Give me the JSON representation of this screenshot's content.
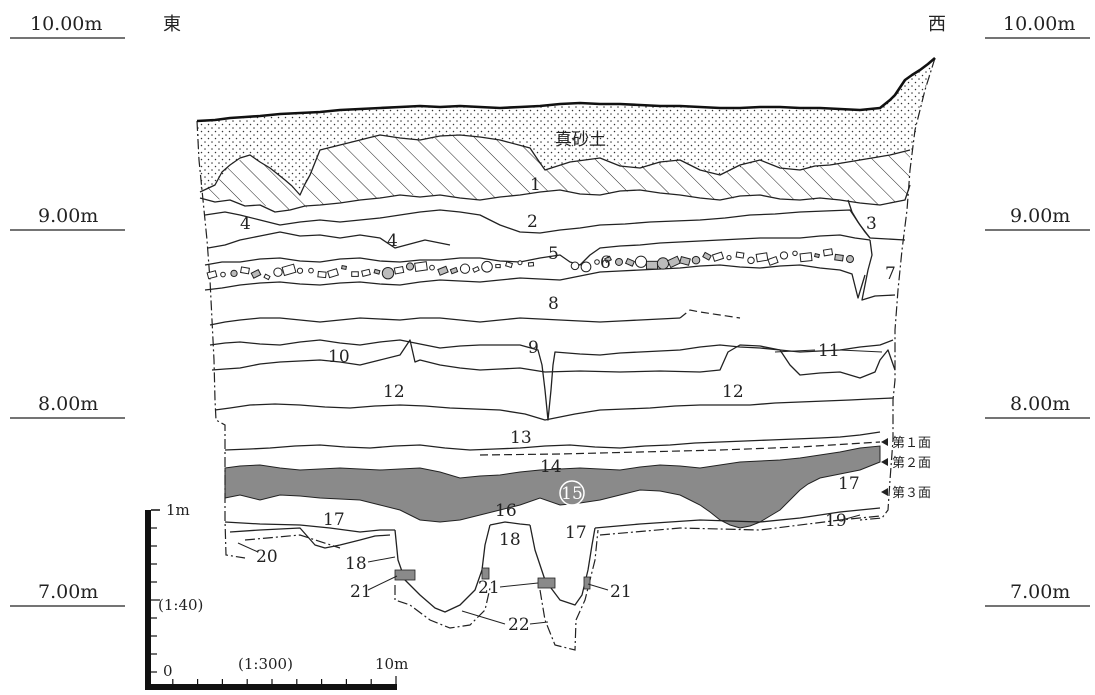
{
  "elevations": {
    "left": [
      "10.00m",
      "9.00m",
      "8.00m",
      "7.00m"
    ],
    "right": [
      "10.00m",
      "9.00m",
      "8.00m",
      "7.00m"
    ]
  },
  "directions": {
    "east": "東",
    "west": "西"
  },
  "soil_label": "真砂土",
  "layers": {
    "n1": "1",
    "n2": "2",
    "n3": "3",
    "n4": "4",
    "n5": "5",
    "n6": "6",
    "n7": "7",
    "n8": "8",
    "n9": "9",
    "n10": "10",
    "n11": "11",
    "n12": "12",
    "n13": "13",
    "n14": "14",
    "n15": "15",
    "n16": "16",
    "n17": "17",
    "n18": "18",
    "n19": "19",
    "n20": "20",
    "n21": "21",
    "n22": "22"
  },
  "surfaces": {
    "first": "第１面",
    "second": "第２面",
    "third": "第３面"
  },
  "scale": {
    "vertical_top": "1m",
    "vertical_ratio": "(1:40)",
    "horizontal_zero": "0",
    "horizontal_ratio": "(1:300)",
    "horizontal_end": "10m"
  },
  "colors": {
    "layer_15": "#8a8a8a",
    "ink": "#222222"
  }
}
